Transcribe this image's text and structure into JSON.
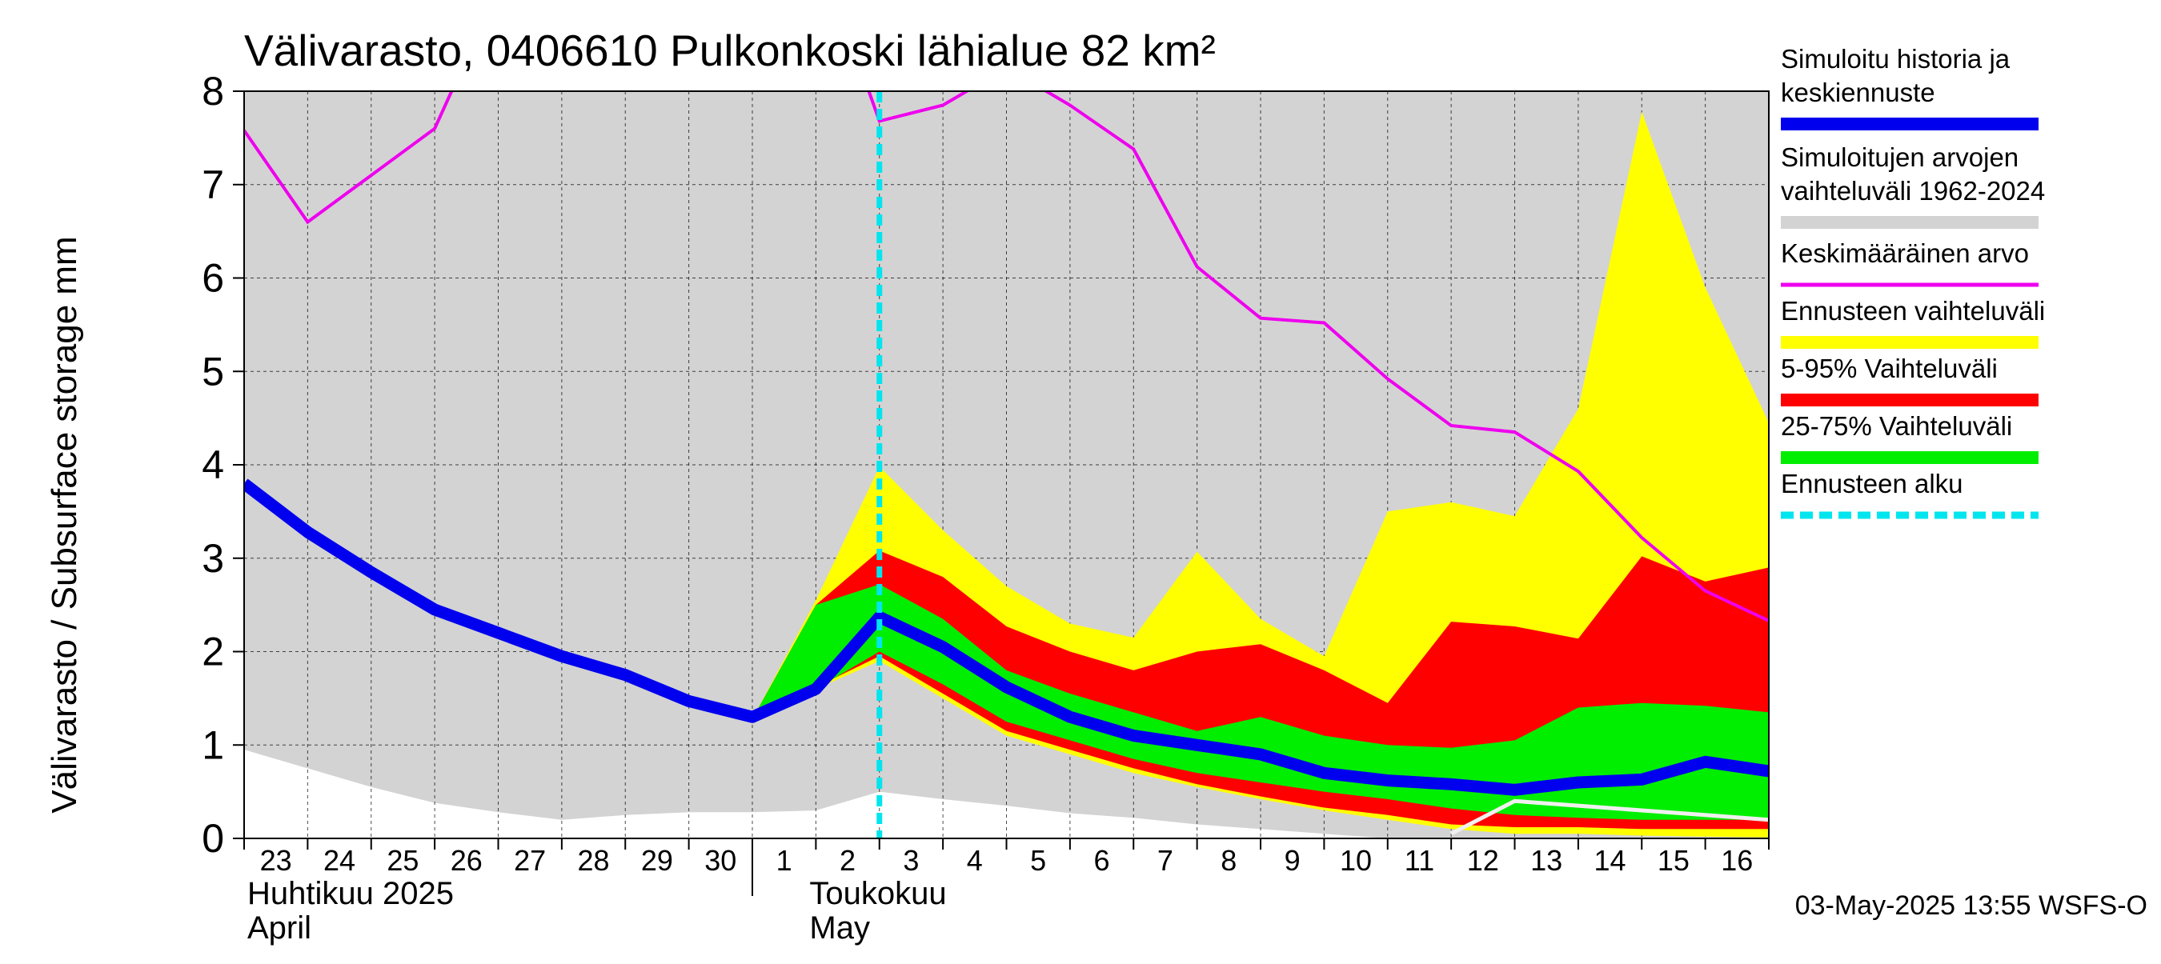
{
  "chart_data": {
    "type": "area",
    "title": "Välivarasto, 0406610 Pulkonkoski lähialue 82 km²",
    "ylabel": "Välivarasto / Subsurface storage  mm",
    "ylim": [
      0,
      8
    ],
    "yticks": [
      "0",
      "1",
      "2",
      "3",
      "4",
      "5",
      "6",
      "7",
      "8"
    ],
    "x_tick_labels": [
      "23",
      "24",
      "25",
      "26",
      "27",
      "28",
      "29",
      "30",
      "1",
      "2",
      "3",
      "4",
      "5",
      "6",
      "7",
      "8",
      "9",
      "10",
      "11",
      "12",
      "13",
      "14",
      "15",
      "16"
    ],
    "x_domain": [
      0,
      24
    ],
    "month_labels": [
      {
        "fi": "Huhtikuu  2025",
        "en": "April"
      },
      {
        "fi": "Toukokuu",
        "en": "May"
      }
    ],
    "forecast_start_x": 10,
    "grid": true,
    "legend": {
      "position": "right",
      "items": [
        {
          "label": "Simuloitu historia ja keskiennuste",
          "color": "#0000ee",
          "style": "thick"
        },
        {
          "label": "Simuloitujen arvojen vaihteluväli 1962-2024",
          "color": "#d3d3d3",
          "style": "band"
        },
        {
          "label": "Keskimääräinen arvo",
          "color": "#ee00ee",
          "style": "line"
        },
        {
          "label": "Ennusteen vaihteluväli",
          "color": "#ffff00",
          "style": "band"
        },
        {
          "label": "5-95% Vaihteluväli",
          "color": "#ff0000",
          "style": "band"
        },
        {
          "label": "25-75% Vaihteluväli",
          "color": "#00ee00",
          "style": "band"
        },
        {
          "label": "Ennusteen alku",
          "color": "#00e5ee",
          "style": "dashed"
        }
      ]
    },
    "series": {
      "hist_range": {
        "x": [
          0,
          1,
          2,
          3,
          4,
          5,
          6,
          7,
          8,
          9,
          10,
          11,
          12,
          13,
          14,
          15,
          16,
          17,
          18,
          19,
          20,
          21,
          22,
          23,
          24
        ],
        "lower": [
          0.95,
          0.75,
          0.55,
          0.38,
          0.28,
          0.2,
          0.25,
          0.28,
          0.28,
          0.3,
          0.5,
          0.42,
          0.35,
          0.27,
          0.22,
          0.15,
          0.1,
          0.05,
          0.0,
          0.0,
          0.0,
          0.0,
          0.0,
          0.0,
          0.0
        ],
        "upper": [
          8,
          8,
          8,
          8,
          8,
          8,
          8,
          8,
          8,
          8,
          8,
          8,
          8,
          8,
          8,
          8,
          8,
          8,
          8,
          8,
          8,
          8,
          8,
          8,
          8
        ]
      },
      "forecast_full": {
        "x": [
          8,
          9,
          10,
          11,
          12,
          13,
          14,
          15,
          16,
          17,
          18,
          19,
          20,
          21,
          22,
          23,
          24
        ],
        "lower": [
          1.28,
          1.6,
          1.9,
          1.5,
          1.1,
          0.9,
          0.7,
          0.55,
          0.42,
          0.3,
          0.2,
          0.1,
          0.05,
          0.05,
          0.03,
          0.02,
          0.01
        ],
        "upper": [
          1.28,
          2.55,
          3.98,
          3.3,
          2.7,
          2.3,
          2.15,
          3.07,
          2.35,
          1.95,
          3.5,
          3.6,
          3.45,
          4.6,
          7.78,
          5.9,
          4.45
        ]
      },
      "p5_95": {
        "x": [
          8,
          9,
          10,
          11,
          12,
          13,
          14,
          15,
          16,
          17,
          18,
          19,
          20,
          21,
          22,
          23,
          24
        ],
        "lower": [
          1.28,
          1.62,
          1.95,
          1.55,
          1.15,
          0.95,
          0.75,
          0.58,
          0.45,
          0.33,
          0.25,
          0.15,
          0.12,
          0.12,
          0.1,
          0.1,
          0.1
        ],
        "upper": [
          1.28,
          2.5,
          3.08,
          2.8,
          2.27,
          2.0,
          1.8,
          2.0,
          2.08,
          1.8,
          1.45,
          2.32,
          2.27,
          2.14,
          3.02,
          2.75,
          2.9
        ]
      },
      "p25_75": {
        "x": [
          8,
          9,
          10,
          11,
          12,
          13,
          14,
          15,
          16,
          17,
          18,
          19,
          20,
          21,
          22,
          23,
          24
        ],
        "lower": [
          1.28,
          1.6,
          2.0,
          1.65,
          1.25,
          1.05,
          0.85,
          0.7,
          0.6,
          0.5,
          0.42,
          0.32,
          0.25,
          0.22,
          0.2,
          0.2,
          0.2
        ],
        "upper": [
          1.28,
          2.5,
          2.72,
          2.35,
          1.8,
          1.55,
          1.35,
          1.15,
          1.3,
          1.1,
          1.0,
          0.97,
          1.05,
          1.4,
          1.45,
          1.42,
          1.35
        ]
      },
      "mean": {
        "x": [
          0,
          1,
          2,
          3,
          4,
          5,
          6,
          7,
          8,
          9,
          10,
          11,
          12,
          13,
          14,
          15,
          16,
          17,
          18,
          19,
          20,
          21,
          22,
          23,
          24
        ],
        "values": [
          7.58,
          6.6,
          7.1,
          7.6,
          9.1,
          9.6,
          9.8,
          9.8,
          9.8,
          9.6,
          7.68,
          7.85,
          8.25,
          7.85,
          7.38,
          6.12,
          5.57,
          5.52,
          4.92,
          4.42,
          4.35,
          3.93,
          3.22,
          2.65,
          2.33
        ]
      },
      "median_sim": {
        "x": [
          0,
          1,
          2,
          3,
          4,
          5,
          6,
          7,
          8,
          9,
          10,
          11,
          12,
          13,
          14,
          15,
          16,
          17,
          18,
          19,
          20,
          21,
          22,
          23,
          24
        ],
        "values": [
          3.8,
          3.28,
          2.85,
          2.45,
          2.2,
          1.95,
          1.75,
          1.47,
          1.3,
          1.6,
          2.37,
          2.05,
          1.62,
          1.3,
          1.1,
          1.0,
          0.9,
          0.7,
          0.62,
          0.58,
          0.52,
          0.6,
          0.63,
          0.82,
          0.72
        ]
      },
      "white_line": {
        "x": [
          19,
          20,
          21,
          22,
          23,
          24
        ],
        "values": [
          0.05,
          0.4,
          0.35,
          0.3,
          0.25,
          0.2
        ]
      }
    },
    "footer": "03-May-2025 13:55 WSFS-O"
  }
}
